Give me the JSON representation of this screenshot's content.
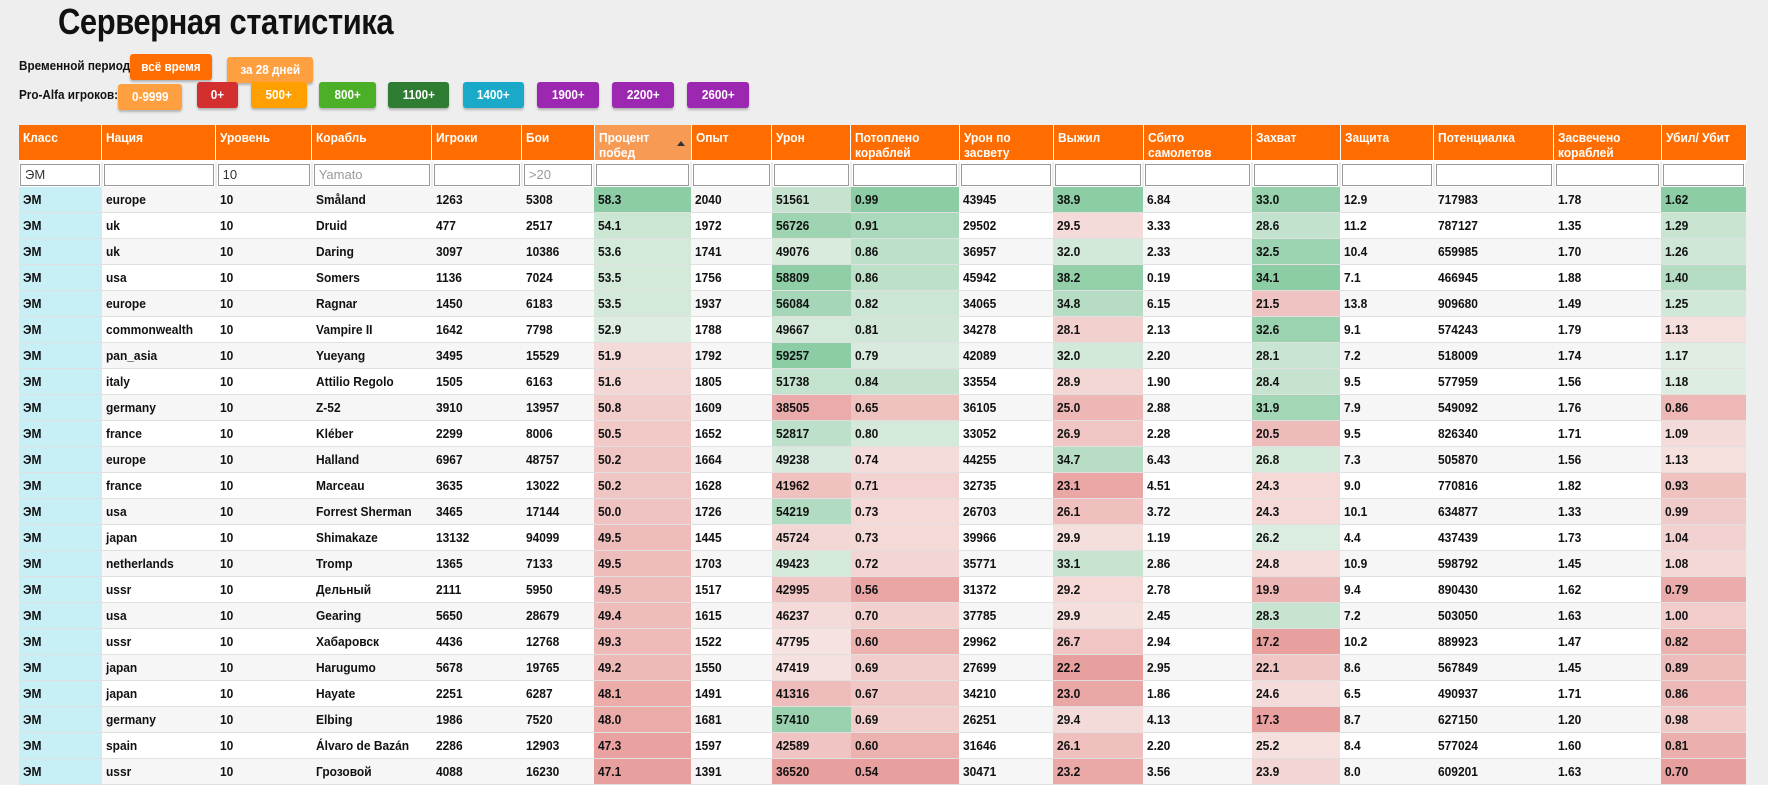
{
  "page_title": "Серверная статистика",
  "period": {
    "label": "Временной период:",
    "buttons": [
      {
        "label": "всё время",
        "color": "#ff6d00"
      },
      {
        "label": "за 28 дней",
        "color": "#ffa040"
      }
    ]
  },
  "proalfa": {
    "label": "Pro-Alfa игроков:",
    "buttons": [
      {
        "label": "0-9999",
        "color": "#ffa040"
      },
      {
        "label": "0+",
        "color": "#d32f2f"
      },
      {
        "label": "500+",
        "color": "#ffa000"
      },
      {
        "label": "800+",
        "color": "#4caf28"
      },
      {
        "label": "1100+",
        "color": "#2e7d32"
      },
      {
        "label": "1400+",
        "color": "#1aa9c8"
      },
      {
        "label": "1900+",
        "color": "#9c27b0"
      },
      {
        "label": "2200+",
        "color": "#9c27b0"
      },
      {
        "label": "2600+",
        "color": "#9c27b0"
      }
    ]
  },
  "table": {
    "headers": [
      "Класс",
      "Нация",
      "Уровень",
      "Корабль",
      "Игроки",
      "Бои",
      "Процент побед",
      "Опыт",
      "Урон",
      "Потоплено кораблей",
      "Урон по засвету",
      "Выжил",
      "Сбито самолетов",
      "Захват",
      "Защита",
      "Потенциалка",
      "Засвечено кораблей",
      "Убил/ Убит"
    ],
    "filters": [
      {
        "value": "ЭМ",
        "placeholder": ""
      },
      {
        "value": "",
        "placeholder": ""
      },
      {
        "value": "10",
        "placeholder": ""
      },
      {
        "value": "",
        "placeholder": "Yamato"
      },
      {
        "value": "",
        "placeholder": ""
      },
      {
        "value": "",
        "placeholder": ">20"
      },
      {
        "value": "",
        "placeholder": ""
      },
      {
        "value": "",
        "placeholder": ""
      },
      {
        "value": "",
        "placeholder": ""
      },
      {
        "value": "",
        "placeholder": ""
      },
      {
        "value": "",
        "placeholder": ""
      },
      {
        "value": "",
        "placeholder": ""
      },
      {
        "value": "",
        "placeholder": ""
      },
      {
        "value": "",
        "placeholder": ""
      },
      {
        "value": "",
        "placeholder": ""
      },
      {
        "value": "",
        "placeholder": ""
      },
      {
        "value": "",
        "placeholder": ""
      },
      {
        "value": "",
        "placeholder": ""
      }
    ],
    "rows": [
      [
        "ЭМ",
        "europe",
        "10",
        "Småland",
        "1263",
        "5308",
        "58.3",
        "2040",
        "51561",
        "0.99",
        "43945",
        "38.9",
        "6.84",
        "33.0",
        "12.9",
        "717983",
        "1.78",
        "1.62"
      ],
      [
        "ЭМ",
        "uk",
        "10",
        "Druid",
        "477",
        "2517",
        "54.1",
        "1972",
        "56726",
        "0.91",
        "29502",
        "29.5",
        "3.33",
        "28.6",
        "11.2",
        "787127",
        "1.35",
        "1.29"
      ],
      [
        "ЭМ",
        "uk",
        "10",
        "Daring",
        "3097",
        "10386",
        "53.6",
        "1741",
        "49076",
        "0.86",
        "36957",
        "32.0",
        "2.33",
        "32.5",
        "10.4",
        "659985",
        "1.70",
        "1.26"
      ],
      [
        "ЭМ",
        "usa",
        "10",
        "Somers",
        "1136",
        "7024",
        "53.5",
        "1756",
        "58809",
        "0.86",
        "45942",
        "38.2",
        "0.19",
        "34.1",
        "7.1",
        "466945",
        "1.88",
        "1.40"
      ],
      [
        "ЭМ",
        "europe",
        "10",
        "Ragnar",
        "1450",
        "6183",
        "53.5",
        "1937",
        "56084",
        "0.82",
        "34065",
        "34.8",
        "6.15",
        "21.5",
        "13.8",
        "909680",
        "1.49",
        "1.25"
      ],
      [
        "ЭМ",
        "commonwealth",
        "10",
        "Vampire II",
        "1642",
        "7798",
        "52.9",
        "1788",
        "49667",
        "0.81",
        "34278",
        "28.1",
        "2.13",
        "32.6",
        "9.1",
        "574243",
        "1.79",
        "1.13"
      ],
      [
        "ЭМ",
        "pan_asia",
        "10",
        "Yueyang",
        "3495",
        "15529",
        "51.9",
        "1792",
        "59257",
        "0.79",
        "42089",
        "32.0",
        "2.20",
        "28.1",
        "7.2",
        "518009",
        "1.74",
        "1.17"
      ],
      [
        "ЭМ",
        "italy",
        "10",
        "Attilio Regolo",
        "1505",
        "6163",
        "51.6",
        "1805",
        "51738",
        "0.84",
        "33554",
        "28.9",
        "1.90",
        "28.4",
        "9.5",
        "577959",
        "1.56",
        "1.18"
      ],
      [
        "ЭМ",
        "germany",
        "10",
        "Z-52",
        "3910",
        "13957",
        "50.8",
        "1609",
        "38505",
        "0.65",
        "36105",
        "25.0",
        "2.88",
        "31.9",
        "7.9",
        "549092",
        "1.76",
        "0.86"
      ],
      [
        "ЭМ",
        "france",
        "10",
        "Kléber",
        "2299",
        "8006",
        "50.5",
        "1652",
        "52817",
        "0.80",
        "33052",
        "26.9",
        "2.28",
        "20.5",
        "9.5",
        "826340",
        "1.71",
        "1.09"
      ],
      [
        "ЭМ",
        "europe",
        "10",
        "Halland",
        "6967",
        "48757",
        "50.2",
        "1664",
        "49238",
        "0.74",
        "44255",
        "34.7",
        "6.43",
        "26.8",
        "7.3",
        "505870",
        "1.56",
        "1.13"
      ],
      [
        "ЭМ",
        "france",
        "10",
        "Marceau",
        "3635",
        "13022",
        "50.2",
        "1628",
        "41962",
        "0.71",
        "32735",
        "23.1",
        "4.51",
        "24.3",
        "9.0",
        "770816",
        "1.82",
        "0.93"
      ],
      [
        "ЭМ",
        "usa",
        "10",
        "Forrest Sherman",
        "3465",
        "17144",
        "50.0",
        "1726",
        "54219",
        "0.73",
        "26703",
        "26.1",
        "3.72",
        "24.3",
        "10.1",
        "634877",
        "1.33",
        "0.99"
      ],
      [
        "ЭМ",
        "japan",
        "10",
        "Shimakaze",
        "13132",
        "94099",
        "49.5",
        "1445",
        "45724",
        "0.73",
        "39966",
        "29.9",
        "1.19",
        "26.2",
        "4.4",
        "437439",
        "1.73",
        "1.04"
      ],
      [
        "ЭМ",
        "netherlands",
        "10",
        "Tromp",
        "1365",
        "7133",
        "49.5",
        "1703",
        "49423",
        "0.72",
        "35771",
        "33.1",
        "2.86",
        "24.8",
        "10.9",
        "598792",
        "1.45",
        "1.08"
      ],
      [
        "ЭМ",
        "ussr",
        "10",
        "Дельный",
        "2111",
        "5950",
        "49.5",
        "1517",
        "42995",
        "0.56",
        "31372",
        "29.2",
        "2.78",
        "19.9",
        "9.4",
        "890430",
        "1.62",
        "0.79"
      ],
      [
        "ЭМ",
        "usa",
        "10",
        "Gearing",
        "5650",
        "28679",
        "49.4",
        "1615",
        "46237",
        "0.70",
        "37785",
        "29.9",
        "2.45",
        "28.3",
        "7.2",
        "503050",
        "1.63",
        "1.00"
      ],
      [
        "ЭМ",
        "ussr",
        "10",
        "Хабаровск",
        "4436",
        "12768",
        "49.3",
        "1522",
        "47795",
        "0.60",
        "29962",
        "26.7",
        "2.94",
        "17.2",
        "10.2",
        "889923",
        "1.47",
        "0.82"
      ],
      [
        "ЭМ",
        "japan",
        "10",
        "Harugumo",
        "5678",
        "19765",
        "49.2",
        "1550",
        "47419",
        "0.69",
        "27699",
        "22.2",
        "2.95",
        "22.1",
        "8.6",
        "567849",
        "1.45",
        "0.89"
      ],
      [
        "ЭМ",
        "japan",
        "10",
        "Hayate",
        "2251",
        "6287",
        "48.1",
        "1491",
        "41316",
        "0.67",
        "34210",
        "23.0",
        "1.86",
        "24.6",
        "6.5",
        "490937",
        "1.71",
        "0.86"
      ],
      [
        "ЭМ",
        "germany",
        "10",
        "Elbing",
        "1986",
        "7520",
        "48.0",
        "1681",
        "57410",
        "0.69",
        "26251",
        "29.4",
        "4.13",
        "17.3",
        "8.7",
        "627150",
        "1.20",
        "0.98"
      ],
      [
        "ЭМ",
        "spain",
        "10",
        "Álvaro de Bazán",
        "2286",
        "12903",
        "47.3",
        "1597",
        "42589",
        "0.60",
        "31646",
        "26.1",
        "2.20",
        "25.2",
        "8.4",
        "577024",
        "1.60",
        "0.81"
      ],
      [
        "ЭМ",
        "ussr",
        "10",
        "Грозовой",
        "4088",
        "16230",
        "47.1",
        "1391",
        "36520",
        "0.54",
        "30471",
        "23.2",
        "3.56",
        "23.9",
        "8.0",
        "609201",
        "1.63",
        "0.70"
      ]
    ]
  }
}
